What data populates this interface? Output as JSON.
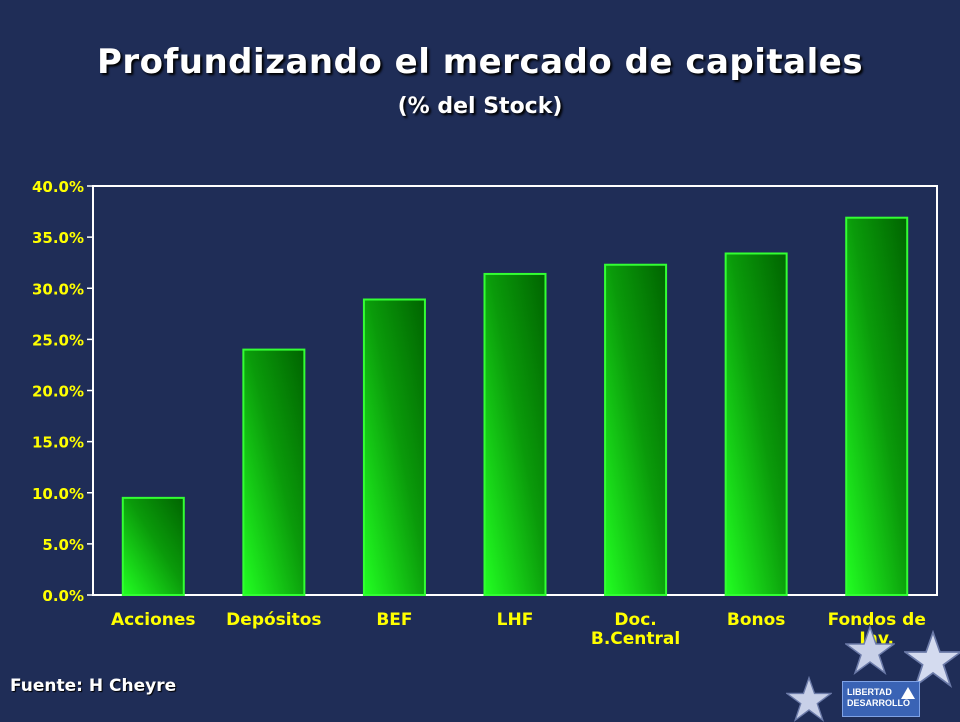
{
  "title": "Profundizando el mercado de capitales",
  "subtitle": "(% del Stock)",
  "source": "Fuente: H Cheyre",
  "logo": {
    "line1": "LIBERTAD",
    "line2": "DESARROLLO"
  },
  "icons": [
    "star-icon"
  ],
  "colors": {
    "background": "#1f2d57",
    "bar_light": "#22ff22",
    "bar_dark": "#006600",
    "tick_label": "#ffff00",
    "category_label": "#ffff00"
  },
  "chart_data": {
    "type": "bar",
    "categories": [
      [
        "Acciones"
      ],
      [
        "Depósitos"
      ],
      [
        "BEF"
      ],
      [
        "LHF"
      ],
      [
        "Doc.",
        "B.Central"
      ],
      [
        "Bonos"
      ],
      [
        "Fondos de",
        "Inv."
      ]
    ],
    "values": [
      9.5,
      24.0,
      28.9,
      31.4,
      32.3,
      33.4,
      36.9
    ],
    "ylim": [
      0,
      40
    ],
    "yticks": [
      0,
      5,
      10,
      15,
      20,
      25,
      30,
      35,
      40
    ],
    "ytick_labels": [
      "0.0%",
      "5.0%",
      "10.0%",
      "15.0%",
      "20.0%",
      "25.0%",
      "30.0%",
      "35.0%",
      "40.0%"
    ],
    "grid": false,
    "legend": "none"
  }
}
